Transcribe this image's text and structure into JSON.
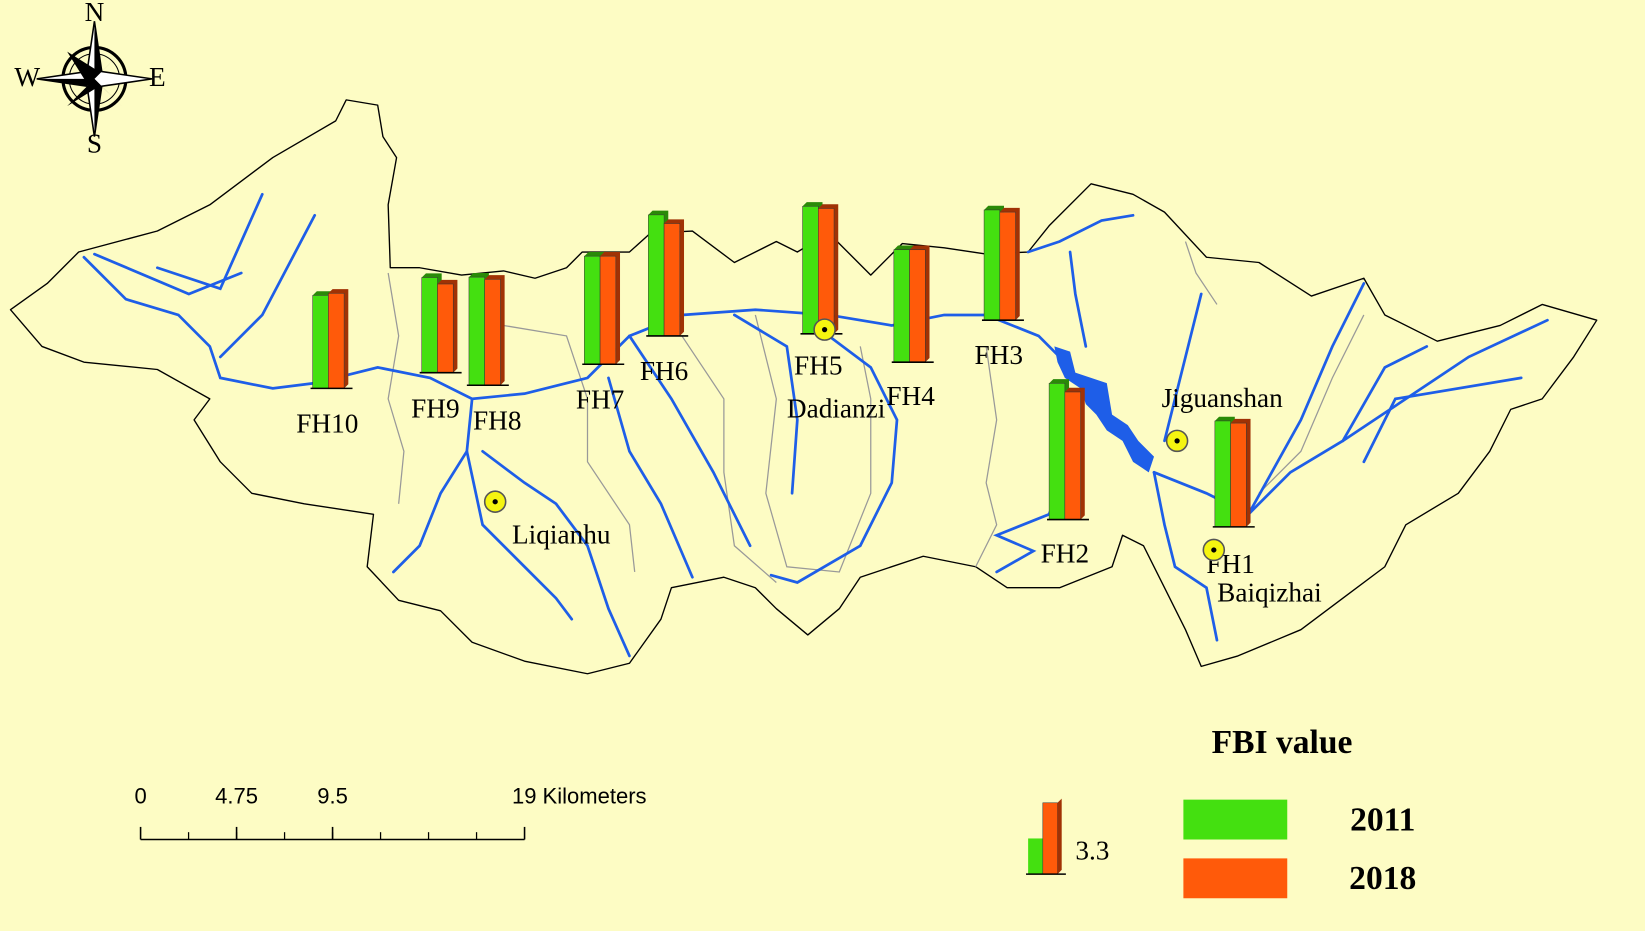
{
  "compass": {
    "north": "N",
    "south": "S",
    "east": "E",
    "west": "W"
  },
  "chart_data": {
    "type": "bar",
    "categories": [
      "FH1",
      "FH2",
      "FH3",
      "FH4",
      "FH5",
      "FH6",
      "FH7",
      "FH8",
      "FH9",
      "FH10"
    ],
    "series": [
      {
        "name": "2011",
        "color": "#44e010",
        "values": [
          4.9,
          6.3,
          5.1,
          5.2,
          5.9,
          5.6,
          5.0,
          5.0,
          4.4,
          4.3
        ]
      },
      {
        "name": "2018",
        "color": "#ff5a0a",
        "values": [
          4.8,
          5.9,
          5.0,
          5.2,
          5.8,
          5.2,
          5.0,
          4.9,
          4.1,
          4.4
        ]
      }
    ],
    "legend_title": "FBI value",
    "legend_sample": 3.3
  },
  "towns": [
    "Liqianhu",
    "Dadianzi",
    "Jiguanshan",
    "Baiqizhai"
  ],
  "scale_bar": {
    "ticks": [
      0,
      4.75,
      9.5,
      {
        "value": 19,
        "label": "19 Kilometers"
      }
    ]
  }
}
